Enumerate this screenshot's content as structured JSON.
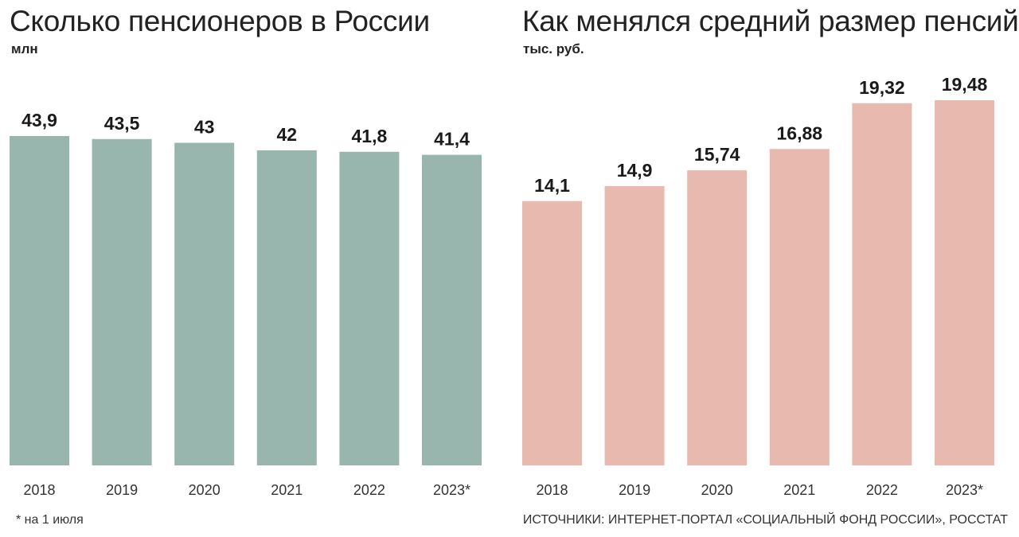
{
  "colors": {
    "left_bar": "#98b5ae",
    "right_bar": "#e8b9af"
  },
  "left": {
    "title": "Сколько пенсионеров в России",
    "unit": "млн"
  },
  "right": {
    "title": "Как менялся средний размер пенсий",
    "unit": "тыс. руб."
  },
  "footnote": "* на 1 июля",
  "source": "ИСТОЧНИКИ: ИНТЕРНЕТ-ПОРТАЛ «СОЦИАЛЬНЫЙ ФОНД РОССИИ», РОССТАТ",
  "chart_data": [
    {
      "type": "bar",
      "title": "Сколько пенсионеров в России",
      "ylabel": "млн",
      "categories": [
        "2018",
        "2019",
        "2020",
        "2021",
        "2022",
        "2023*"
      ],
      "values": [
        43.9,
        43.5,
        43,
        42,
        41.8,
        41.4
      ],
      "value_labels": [
        "43,9",
        "43,5",
        "43",
        "42",
        "41,8",
        "41,4"
      ],
      "ylim": [
        0,
        43.9
      ],
      "grid": false,
      "legend": "none"
    },
    {
      "type": "bar",
      "title": "Как менялся средний размер пенсий",
      "ylabel": "тыс. руб.",
      "categories": [
        "2018",
        "2019",
        "2020",
        "2021",
        "2022",
        "2023*"
      ],
      "values": [
        14.1,
        14.9,
        15.74,
        16.88,
        19.32,
        19.48
      ],
      "value_labels": [
        "14,1",
        "14,9",
        "15,74",
        "16,88",
        "19,32",
        "19,48"
      ],
      "ylim": [
        0,
        19.48
      ],
      "grid": false,
      "legend": "none"
    }
  ]
}
